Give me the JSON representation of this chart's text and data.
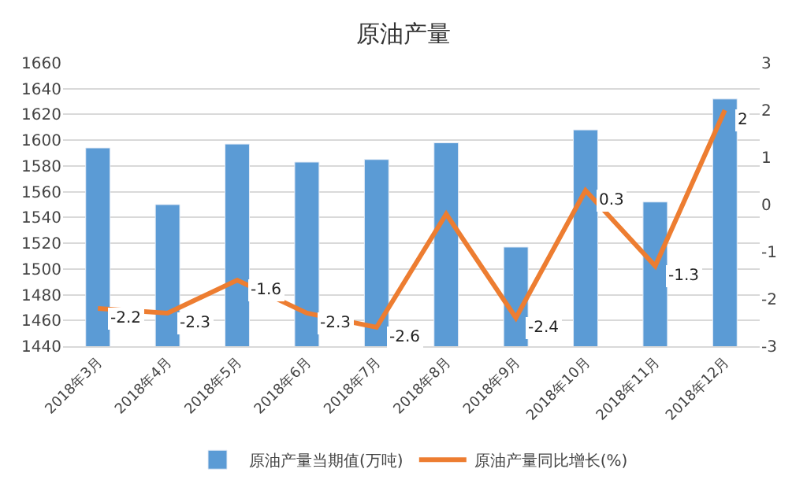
{
  "chart_data": {
    "type": "bar",
    "title": "原油产量",
    "categories": [
      "2018年3月",
      "2018年4月",
      "2018年5月",
      "2018年6月",
      "2018年7月",
      "2018年8月",
      "2018年9月",
      "2018年10月",
      "2018年11月",
      "2018年12月"
    ],
    "series": [
      {
        "name": "原油产量当期值(万吨)",
        "color": "#5b9bd5",
        "values": [
          1594,
          1550,
          1597,
          1583,
          1585,
          1598,
          1517,
          1608,
          1552,
          1632
        ]
      },
      {
        "name": "原油产量同比增长(%)",
        "type": "line",
        "axis": "y2",
        "color": "#ed7d31",
        "values": [
          -2.2,
          -2.3,
          -1.6,
          -2.3,
          -2.6,
          -0.2,
          -2.4,
          0.3,
          -1.3,
          2
        ],
        "value_labels": [
          "-2.2",
          "-2.3",
          "-1.6",
          "-2.3",
          "-2.6",
          null,
          "-2.4",
          "0.3",
          "-1.3",
          "2"
        ]
      }
    ],
    "ylim": [
      1440,
      1660
    ],
    "yticks": [
      1440,
      1460,
      1480,
      1500,
      1520,
      1540,
      1560,
      1580,
      1600,
      1620,
      1640,
      1660
    ],
    "y2lim": [
      -3,
      3
    ],
    "y2ticks": [
      -3,
      -2,
      -1,
      0,
      1,
      2,
      3
    ],
    "grid": "y",
    "legend": "bottom",
    "marker": "none",
    "line_style": "solid"
  }
}
